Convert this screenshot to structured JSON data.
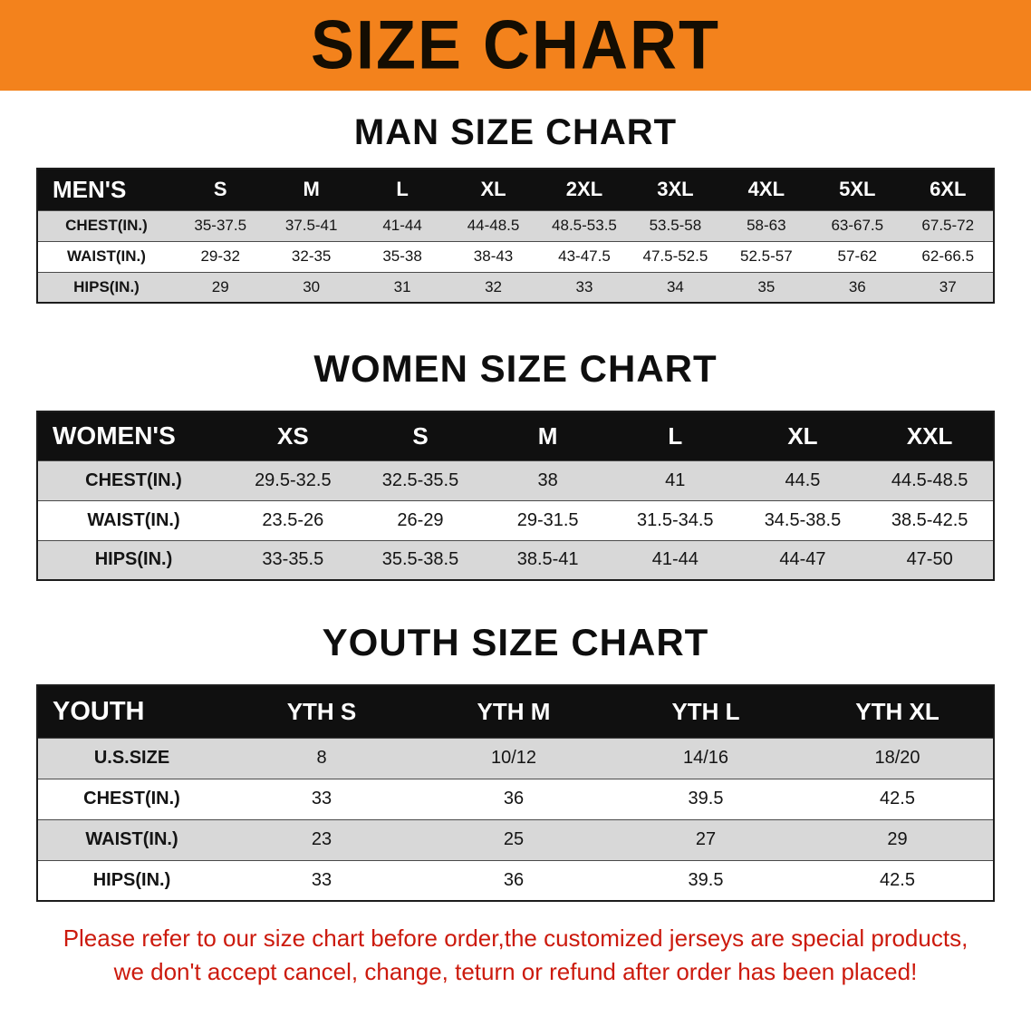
{
  "banner": {
    "title": "SIZE CHART"
  },
  "men": {
    "heading": "MAN SIZE CHART",
    "table": {
      "header": [
        "MEN'S",
        "S",
        "M",
        "L",
        "XL",
        "2XL",
        "3XL",
        "4XL",
        "5XL",
        "6XL"
      ],
      "rows": [
        {
          "label": "CHEST(IN.)",
          "values": [
            "35-37.5",
            "37.5-41",
            "41-44",
            "44-48.5",
            "48.5-53.5",
            "53.5-58",
            "58-63",
            "63-67.5",
            "67.5-72"
          ]
        },
        {
          "label": "WAIST(IN.)",
          "values": [
            "29-32",
            "32-35",
            "35-38",
            "38-43",
            "43-47.5",
            "47.5-52.5",
            "52.5-57",
            "57-62",
            "62-66.5"
          ]
        },
        {
          "label": "HIPS(IN.)",
          "values": [
            "29",
            "30",
            "31",
            "32",
            "33",
            "34",
            "35",
            "36",
            "37"
          ]
        }
      ]
    }
  },
  "women": {
    "heading": "WOMEN SIZE CHART",
    "table": {
      "header": [
        "WOMEN'S",
        "XS",
        "S",
        "M",
        "L",
        "XL",
        "XXL"
      ],
      "rows": [
        {
          "label": "CHEST(IN.)",
          "values": [
            "29.5-32.5",
            "32.5-35.5",
            "38",
            "41",
            "44.5",
            "44.5-48.5"
          ]
        },
        {
          "label": "WAIST(IN.)",
          "values": [
            "23.5-26",
            "26-29",
            "29-31.5",
            "31.5-34.5",
            "34.5-38.5",
            "38.5-42.5"
          ]
        },
        {
          "label": "HIPS(IN.)",
          "values": [
            "33-35.5",
            "35.5-38.5",
            "38.5-41",
            "41-44",
            "44-47",
            "47-50"
          ]
        }
      ]
    }
  },
  "youth": {
    "heading": "YOUTH SIZE CHART",
    "table": {
      "header": [
        "YOUTH",
        "YTH S",
        "YTH M",
        "YTH L",
        "YTH XL"
      ],
      "rows": [
        {
          "label": "U.S.SIZE",
          "values": [
            "8",
            "10/12",
            "14/16",
            "18/20"
          ]
        },
        {
          "label": "CHEST(IN.)",
          "values": [
            "33",
            "36",
            "39.5",
            "42.5"
          ]
        },
        {
          "label": "WAIST(IN.)",
          "values": [
            "23",
            "25",
            "27",
            "29"
          ]
        },
        {
          "label": "HIPS(IN.)",
          "values": [
            "33",
            "36",
            "39.5",
            "42.5"
          ]
        }
      ]
    }
  },
  "disclaimer": {
    "lines": [
      "Please refer to our size chart before order,the customized jerseys are special products,",
      "we don't accept cancel, change, teturn or refund after order has been placed!"
    ]
  },
  "colors": {
    "banner_background": "#f3821c",
    "banner_text": "#140d02",
    "table_header_background": "#101010",
    "table_header_text": "#ffffff",
    "row_stripe": "#d8d8d8",
    "disclaimer_text": "#cc1a0d"
  }
}
